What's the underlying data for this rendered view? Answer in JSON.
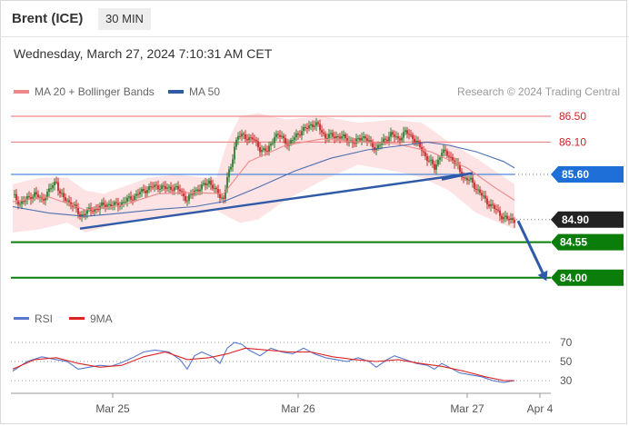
{
  "header": {
    "title": "Brent (ICE)",
    "timeframe": "30 MIN",
    "timestamp": "Wednesday, March 27, 2024 7:10:31 AM CET"
  },
  "legend": {
    "ma20": "MA 20 + Bollinger Bands",
    "ma50": "MA 50",
    "credit": "Research © 2024 Trading Central",
    "rsi": "RSI",
    "rsi_ma": "9MA"
  },
  "colors": {
    "ma20": "#ee8888",
    "ma50": "#2e5aa8",
    "bollinger_fill": "#fde0e0",
    "resistance": "#ee8888",
    "pivot": "#1f6fd9",
    "support": "#0a7d0a",
    "last_price": "#222222",
    "trendline": "#2e5aa8",
    "candle_up": "#2e7d32",
    "candle_down": "#c62828",
    "rsi": "#5577cc",
    "rsi_ma": "#dd2222"
  },
  "chart_data": [
    {
      "type": "candlestick",
      "title": "Brent (ICE)",
      "timeframe": "30 MIN",
      "x_tick_labels": [
        "Mar 25",
        "Mar 26",
        "Mar 27",
        "Apr 4"
      ],
      "ylim": [
        83.8,
        86.8
      ],
      "levels": [
        {
          "name": "resistance-2",
          "value": 86.5,
          "label": "86.50",
          "kind": "resistance"
        },
        {
          "name": "resistance-1",
          "value": 86.1,
          "label": "86.10",
          "kind": "resistance"
        },
        {
          "name": "pivot",
          "value": 85.6,
          "label": "85.60",
          "kind": "pivot"
        },
        {
          "name": "last",
          "value": 84.9,
          "label": "84.90",
          "kind": "last"
        },
        {
          "name": "support-1",
          "value": 84.55,
          "label": "84.55",
          "kind": "support"
        },
        {
          "name": "support-2",
          "value": 84.0,
          "label": "84.00",
          "kind": "support"
        }
      ],
      "trendlines": [
        {
          "from": {
            "i": 37,
            "v": 84.76
          },
          "to": {
            "i": 253,
            "v": 85.62
          }
        },
        {
          "from": {
            "i": 236,
            "v": 85.52
          },
          "to": {
            "i": 253,
            "v": 85.62
          }
        }
      ],
      "projection": {
        "from": {
          "i": 276,
          "v": 84.88
        },
        "to": {
          "i": 294,
          "v": 84.02
        }
      },
      "series": [
        {
          "name": "Price",
          "kind": "close",
          "points": [
            [
              0,
              85.28
            ],
            [
              4,
              85.15
            ],
            [
              8,
              85.22
            ],
            [
              12,
              85.3
            ],
            [
              16,
              85.2
            ],
            [
              20,
              85.35
            ],
            [
              24,
              85.5
            ],
            [
              26,
              85.3
            ],
            [
              29,
              85.2
            ],
            [
              32,
              85.16
            ],
            [
              35,
              85.05
            ],
            [
              37,
              84.95
            ],
            [
              40,
              85.02
            ],
            [
              44,
              85.05
            ],
            [
              48,
              85.1
            ],
            [
              52,
              85.14
            ],
            [
              56,
              85.12
            ],
            [
              60,
              85.16
            ],
            [
              64,
              85.22
            ],
            [
              68,
              85.28
            ],
            [
              72,
              85.35
            ],
            [
              76,
              85.4
            ],
            [
              80,
              85.42
            ],
            [
              84,
              85.38
            ],
            [
              88,
              85.4
            ],
            [
              92,
              85.35
            ],
            [
              96,
              85.2
            ],
            [
              100,
              85.35
            ],
            [
              104,
              85.4
            ],
            [
              108,
              85.5
            ],
            [
              112,
              85.32
            ],
            [
              116,
              85.22
            ],
            [
              118,
              85.55
            ],
            [
              120,
              85.7
            ],
            [
              122,
              86.05
            ],
            [
              124,
              86.2
            ],
            [
              128,
              86.18
            ],
            [
              132,
              86.15
            ],
            [
              136,
              86.0
            ],
            [
              140,
              85.95
            ],
            [
              144,
              86.2
            ],
            [
              148,
              86.18
            ],
            [
              152,
              86.05
            ],
            [
              156,
              86.22
            ],
            [
              160,
              86.28
            ],
            [
              164,
              86.38
            ],
            [
              168,
              86.35
            ],
            [
              172,
              86.18
            ],
            [
              176,
              86.2
            ],
            [
              180,
              86.18
            ],
            [
              184,
              86.15
            ],
            [
              188,
              86.08
            ],
            [
              192,
              86.2
            ],
            [
              196,
              86.1
            ],
            [
              200,
              86.0
            ],
            [
              204,
              86.12
            ],
            [
              208,
              86.22
            ],
            [
              212,
              86.15
            ],
            [
              216,
              86.25
            ],
            [
              220,
              86.18
            ],
            [
              224,
              86.02
            ],
            [
              228,
              85.85
            ],
            [
              232,
              85.7
            ],
            [
              236,
              85.95
            ],
            [
              240,
              85.9
            ],
            [
              244,
              85.75
            ],
            [
              248,
              85.55
            ],
            [
              252,
              85.5
            ],
            [
              256,
              85.35
            ],
            [
              260,
              85.2
            ],
            [
              264,
              85.1
            ],
            [
              268,
              84.98
            ],
            [
              272,
              84.9
            ],
            [
              276,
              84.9
            ]
          ]
        },
        {
          "name": "MA 20",
          "kind": "line",
          "points": [
            [
              0,
              85.18
            ],
            [
              20,
              85.25
            ],
            [
              40,
              85.05
            ],
            [
              60,
              85.12
            ],
            [
              80,
              85.3
            ],
            [
              100,
              85.32
            ],
            [
              116,
              85.3
            ],
            [
              130,
              85.8
            ],
            [
              150,
              86.05
            ],
            [
              170,
              86.15
            ],
            [
              190,
              86.1
            ],
            [
              210,
              86.08
            ],
            [
              230,
              85.95
            ],
            [
              250,
              85.7
            ],
            [
              265,
              85.4
            ],
            [
              276,
              85.2
            ]
          ]
        },
        {
          "name": "MA 50",
          "kind": "line",
          "points": [
            [
              0,
              85.1
            ],
            [
              20,
              85.0
            ],
            [
              40,
              84.95
            ],
            [
              60,
              85.0
            ],
            [
              80,
              85.06
            ],
            [
              100,
              85.1
            ],
            [
              116,
              85.18
            ],
            [
              135,
              85.4
            ],
            [
              155,
              85.65
            ],
            [
              175,
              85.85
            ],
            [
              195,
              85.98
            ],
            [
              215,
              86.05
            ],
            [
              228,
              86.1
            ],
            [
              240,
              86.05
            ],
            [
              255,
              85.95
            ],
            [
              270,
              85.8
            ],
            [
              276,
              85.7
            ]
          ]
        },
        {
          "name": "Bollinger Upper",
          "kind": "band",
          "points": [
            [
              0,
              85.45
            ],
            [
              15,
              85.55
            ],
            [
              30,
              85.55
            ],
            [
              40,
              85.35
            ],
            [
              50,
              85.3
            ],
            [
              60,
              85.4
            ],
            [
              75,
              85.55
            ],
            [
              90,
              85.6
            ],
            [
              105,
              85.55
            ],
            [
              112,
              85.55
            ],
            [
              118,
              86.1
            ],
            [
              125,
              86.5
            ],
            [
              135,
              86.55
            ],
            [
              150,
              86.45
            ],
            [
              170,
              86.5
            ],
            [
              190,
              86.4
            ],
            [
              210,
              86.45
            ],
            [
              225,
              86.4
            ],
            [
              240,
              86.1
            ],
            [
              255,
              85.85
            ],
            [
              276,
              85.45
            ]
          ]
        },
        {
          "name": "Bollinger Lower",
          "kind": "band",
          "points": [
            [
              0,
              84.7
            ],
            [
              15,
              84.75
            ],
            [
              30,
              84.85
            ],
            [
              40,
              84.7
            ],
            [
              50,
              84.78
            ],
            [
              60,
              84.85
            ],
            [
              75,
              84.9
            ],
            [
              90,
              84.95
            ],
            [
              105,
              85.0
            ],
            [
              112,
              85.05
            ],
            [
              118,
              84.95
            ],
            [
              125,
              84.85
            ],
            [
              135,
              84.9
            ],
            [
              150,
              85.2
            ],
            [
              170,
              85.5
            ],
            [
              190,
              85.75
            ],
            [
              210,
              85.65
            ],
            [
              225,
              85.55
            ],
            [
              240,
              85.35
            ],
            [
              255,
              85.0
            ],
            [
              276,
              84.75
            ]
          ]
        }
      ]
    },
    {
      "type": "line",
      "name": "RSI panel",
      "y_tick_labels": [
        "70",
        "50",
        "30"
      ],
      "ylim": [
        20,
        80
      ],
      "series": [
        {
          "name": "RSI",
          "points": [
            [
              0,
              40
            ],
            [
              8,
              50
            ],
            [
              16,
              55
            ],
            [
              24,
              52
            ],
            [
              30,
              50
            ],
            [
              36,
              42
            ],
            [
              42,
              44
            ],
            [
              48,
              46
            ],
            [
              54,
              45
            ],
            [
              60,
              49
            ],
            [
              66,
              54
            ],
            [
              72,
              60
            ],
            [
              78,
              62
            ],
            [
              86,
              60
            ],
            [
              92,
              52
            ],
            [
              96,
              42
            ],
            [
              100,
              56
            ],
            [
              104,
              60
            ],
            [
              110,
              55
            ],
            [
              114,
              48
            ],
            [
              118,
              64
            ],
            [
              122,
              70
            ],
            [
              126,
              68
            ],
            [
              130,
              62
            ],
            [
              136,
              56
            ],
            [
              142,
              64
            ],
            [
              148,
              60
            ],
            [
              154,
              58
            ],
            [
              160,
              64
            ],
            [
              166,
              58
            ],
            [
              172,
              54
            ],
            [
              178,
              52
            ],
            [
              184,
              50
            ],
            [
              190,
              54
            ],
            [
              196,
              50
            ],
            [
              200,
              44
            ],
            [
              206,
              52
            ],
            [
              210,
              56
            ],
            [
              216,
              52
            ],
            [
              222,
              48
            ],
            [
              228,
              46
            ],
            [
              232,
              42
            ],
            [
              236,
              48
            ],
            [
              240,
              44
            ],
            [
              246,
              38
            ],
            [
              252,
              36
            ],
            [
              258,
              34
            ],
            [
              264,
              30
            ],
            [
              270,
              28
            ],
            [
              276,
              30
            ]
          ]
        },
        {
          "name": "9MA",
          "points": [
            [
              0,
              42
            ],
            [
              12,
              52
            ],
            [
              24,
              54
            ],
            [
              36,
              48
            ],
            [
              48,
              44
            ],
            [
              60,
              46
            ],
            [
              72,
              55
            ],
            [
              84,
              60
            ],
            [
              96,
              52
            ],
            [
              108,
              54
            ],
            [
              118,
              58
            ],
            [
              128,
              64
            ],
            [
              140,
              62
            ],
            [
              152,
              60
            ],
            [
              164,
              60
            ],
            [
              176,
              55
            ],
            [
              188,
              52
            ],
            [
              200,
              50
            ],
            [
              212,
              52
            ],
            [
              224,
              48
            ],
            [
              236,
              45
            ],
            [
              248,
              40
            ],
            [
              260,
              34
            ],
            [
              270,
              30
            ],
            [
              276,
              30
            ]
          ]
        }
      ]
    }
  ]
}
